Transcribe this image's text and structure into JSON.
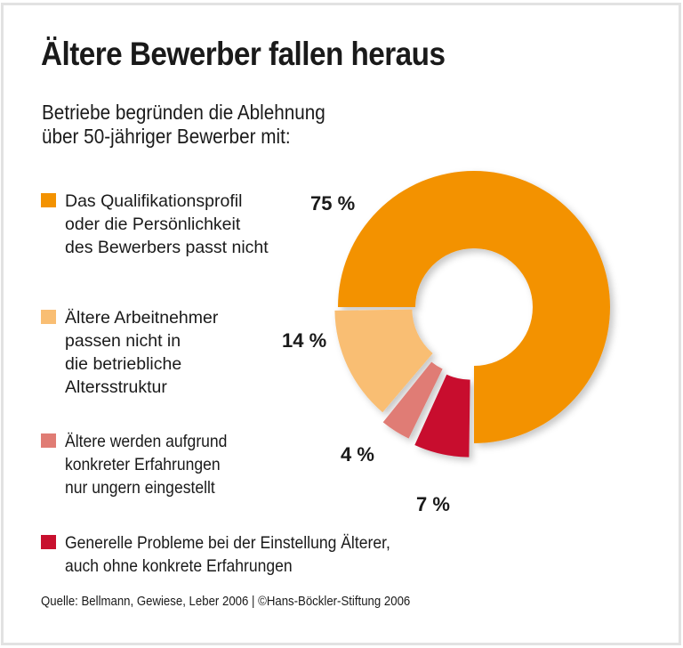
{
  "title": "Ältere Bewerber fallen heraus",
  "subtitle": {
    "line1": "Betriebe begründen die Ablehnung",
    "line2": "über 50-jähriger Bewerber mit:"
  },
  "legend": [
    {
      "lines": [
        "Das Qualifikationsprofil",
        "oder die Persönlichkeit",
        "des Bewerbers passt nicht"
      ],
      "color": "#F39200"
    },
    {
      "lines": [
        "Ältere Arbeitnehmer",
        "passen nicht in",
        "die betriebliche",
        "Altersstruktur"
      ],
      "color": "#F9BE73"
    },
    {
      "lines": [
        "Ältere werden aufgrund",
        "konkreter Erfahrungen",
        "nur ungern eingestellt"
      ],
      "color": "#E07C74"
    },
    {
      "lines": [
        "Generelle Probleme bei der Einstellung Älterer,",
        "auch ohne konkrete Erfahrungen"
      ],
      "color": "#C8102E"
    }
  ],
  "labels": {
    "pct_0": "75 %",
    "pct_1": "14 %",
    "pct_2": "4 %",
    "pct_3": "7 %"
  },
  "source": "Quelle: Bellmann, Gewiese, Leber 2006 | ©Hans-Böckler-Stiftung 2006",
  "chart_data": {
    "type": "pie",
    "variant": "donut",
    "title": "Ältere Bewerber fallen heraus",
    "subtitle": "Betriebe begründen die Ablehnung über 50-jähriger Bewerber mit:",
    "categories": [
      "Das Qualifikationsprofil oder die Persönlichkeit des Bewerbers passt nicht",
      "Ältere Arbeitnehmer passen nicht in die betriebliche Altersstruktur",
      "Ältere werden aufgrund konkreter Erfahrungen nur ungern eingestellt",
      "Generelle Probleme bei der Einstellung Älterer, auch ohne konkrete Erfahrungen"
    ],
    "values": [
      75,
      14,
      4,
      7
    ],
    "unit": "%",
    "colors": [
      "#F39200",
      "#F9BE73",
      "#E07C74",
      "#C8102E"
    ],
    "legend_position": "left",
    "source": "Quelle: Bellmann, Gewiese, Leber 2006 | ©Hans-Böckler-Stiftung 2006"
  }
}
